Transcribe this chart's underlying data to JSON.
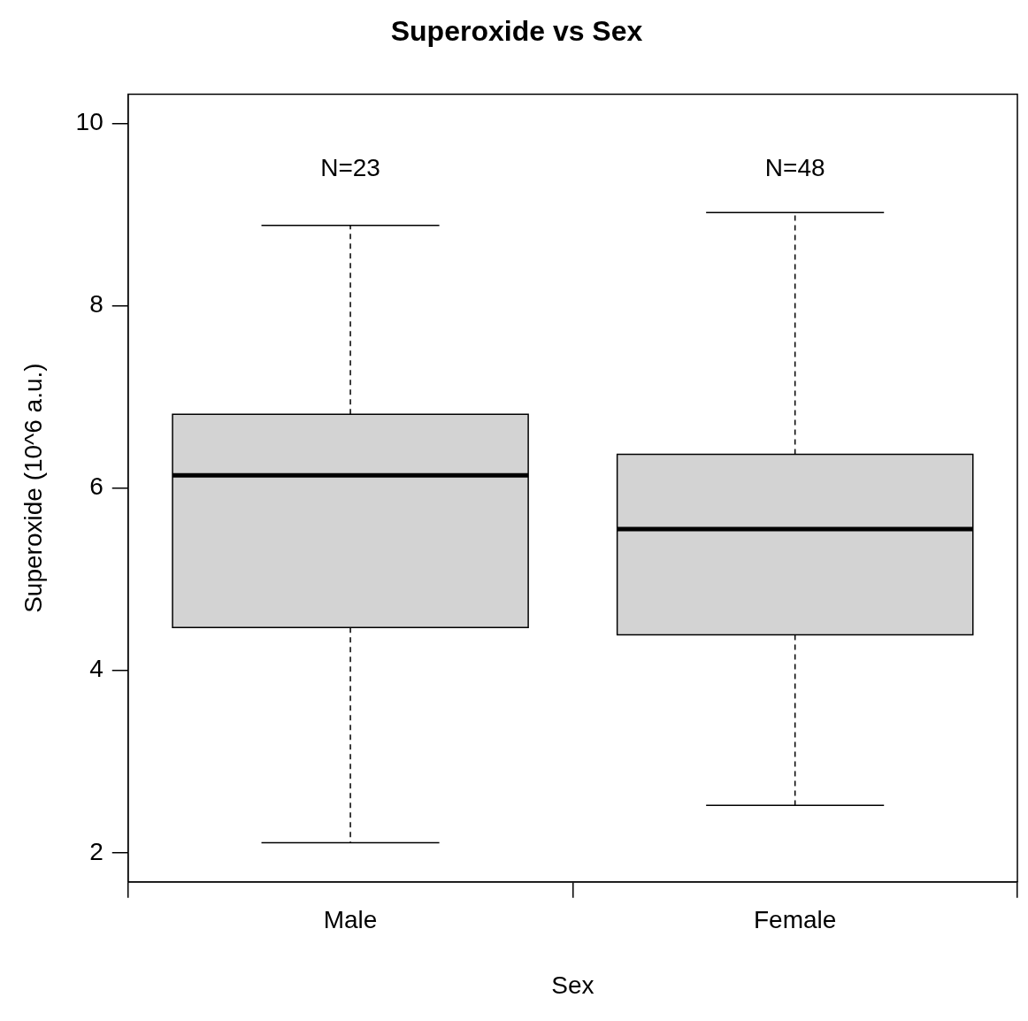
{
  "chart_data": {
    "type": "box",
    "title": "Superoxide vs Sex",
    "xlabel": "Sex",
    "ylabel": "Superoxide (10^6 a.u.)",
    "categories": [
      "Male",
      "Female"
    ],
    "color": "#d3d3d3",
    "boxes": [
      {
        "low": 2.11,
        "q1": 4.47,
        "median": 6.14,
        "q3": 6.81,
        "high": 8.88
      },
      {
        "low": 2.52,
        "q1": 4.39,
        "median": 5.55,
        "q3": 6.37,
        "high": 9.02
      }
    ],
    "ylim": [
      1.68,
      10.32
    ],
    "yticks": [
      2,
      4,
      6,
      8,
      10
    ],
    "line_style": "dashed",
    "annotations": [
      "N=23",
      "N=48"
    ]
  }
}
